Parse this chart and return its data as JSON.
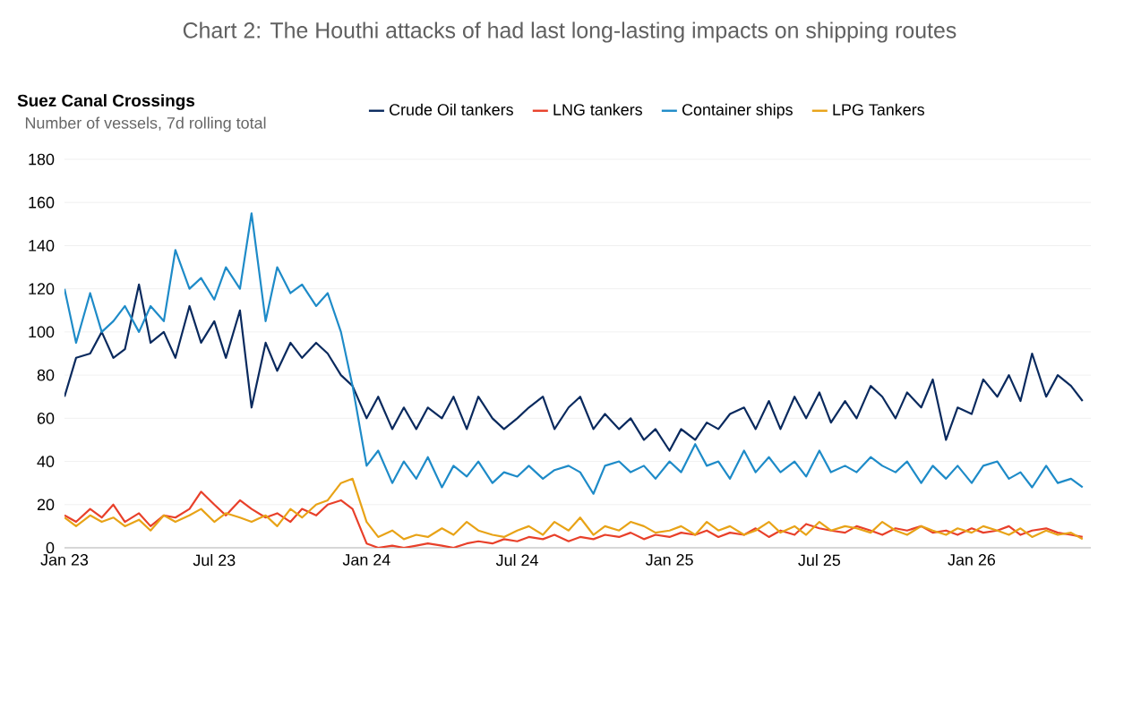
{
  "chart_data": {
    "type": "line",
    "title": "Chart 2: The Houthi attacks of had last long-lasting impacts on shipping routes",
    "subtitle": "Suez Canal Crossings",
    "ylabel": "Number of vessels, 7d rolling total",
    "x": [
      "2023-01-01",
      "2023-01-15",
      "2023-02-01",
      "2023-02-15",
      "2023-03-01",
      "2023-03-15",
      "2023-04-01",
      "2023-04-15",
      "2023-05-01",
      "2023-05-15",
      "2023-06-01",
      "2023-06-15",
      "2023-07-01",
      "2023-07-15",
      "2023-08-01",
      "2023-08-15",
      "2023-09-01",
      "2023-09-15",
      "2023-10-01",
      "2023-10-15",
      "2023-11-01",
      "2023-11-15",
      "2023-12-01",
      "2023-12-15",
      "2024-01-01",
      "2024-01-15",
      "2024-02-01",
      "2024-02-15",
      "2024-03-01",
      "2024-03-15",
      "2024-04-01",
      "2024-04-15",
      "2024-05-01",
      "2024-05-15",
      "2024-06-01",
      "2024-06-15",
      "2024-07-01",
      "2024-07-15",
      "2024-08-01",
      "2024-08-15",
      "2024-09-01",
      "2024-09-15",
      "2024-10-01",
      "2024-10-15",
      "2024-11-01",
      "2024-11-15",
      "2024-12-01",
      "2024-12-15",
      "2025-01-01",
      "2025-01-15",
      "2025-02-01",
      "2025-02-15",
      "2025-03-01",
      "2025-03-15",
      "2025-04-01",
      "2025-04-15",
      "2025-05-01",
      "2025-05-15",
      "2025-06-01",
      "2025-06-15",
      "2025-07-01",
      "2025-07-15",
      "2025-08-01",
      "2025-08-15",
      "2025-09-01",
      "2025-09-15",
      "2025-10-01",
      "2025-10-15",
      "2025-11-01",
      "2025-11-15",
      "2025-12-01",
      "2025-12-15",
      "2026-01-01",
      "2026-01-15",
      "2026-02-01",
      "2026-02-15",
      "2026-03-01",
      "2026-03-15",
      "2026-04-01",
      "2026-04-15",
      "2026-05-01",
      "2026-05-15"
    ],
    "series": [
      {
        "name": "Crude Oil tankers",
        "color": "#0a2a5e",
        "values": [
          70,
          88,
          90,
          100,
          88,
          92,
          122,
          95,
          100,
          88,
          112,
          95,
          105,
          88,
          110,
          65,
          95,
          82,
          95,
          88,
          95,
          90,
          80,
          75,
          60,
          70,
          55,
          65,
          55,
          65,
          60,
          70,
          55,
          70,
          60,
          55,
          60,
          65,
          70,
          55,
          65,
          70,
          55,
          62,
          55,
          60,
          50,
          55,
          45,
          55,
          50,
          58,
          55,
          62,
          65,
          55,
          68,
          55,
          70,
          60,
          72,
          58,
          68,
          60,
          75,
          70,
          60,
          72,
          65,
          78,
          50,
          65,
          62,
          78,
          70,
          80,
          68,
          90,
          70,
          80,
          75,
          68
        ]
      },
      {
        "name": "LNG tankers",
        "color": "#e8402a",
        "values": [
          15,
          12,
          18,
          14,
          20,
          12,
          16,
          10,
          15,
          14,
          18,
          26,
          20,
          15,
          22,
          18,
          14,
          16,
          12,
          18,
          15,
          20,
          22,
          18,
          2,
          0,
          1,
          0,
          1,
          2,
          1,
          0,
          2,
          3,
          2,
          4,
          3,
          5,
          4,
          6,
          3,
          5,
          4,
          6,
          5,
          7,
          4,
          6,
          5,
          7,
          6,
          8,
          5,
          7,
          6,
          9,
          5,
          8,
          6,
          11,
          9,
          8,
          7,
          10,
          8,
          6,
          9,
          8,
          10,
          7,
          8,
          6,
          9,
          7,
          8,
          10,
          6,
          8,
          9,
          7,
          6,
          5
        ]
      },
      {
        "name": "Container ships",
        "color": "#1e8bc8",
        "values": [
          120,
          95,
          118,
          100,
          105,
          112,
          100,
          112,
          105,
          138,
          120,
          125,
          115,
          130,
          120,
          155,
          105,
          130,
          118,
          122,
          112,
          118,
          100,
          75,
          38,
          45,
          30,
          40,
          32,
          42,
          28,
          38,
          33,
          40,
          30,
          35,
          33,
          38,
          32,
          36,
          38,
          35,
          25,
          38,
          40,
          35,
          38,
          32,
          40,
          35,
          48,
          38,
          40,
          32,
          45,
          35,
          42,
          35,
          40,
          33,
          45,
          35,
          38,
          35,
          42,
          38,
          35,
          40,
          30,
          38,
          32,
          38,
          30,
          38,
          40,
          32,
          35,
          28,
          38,
          30,
          32,
          28
        ]
      },
      {
        "name": "LPG Tankers",
        "color": "#e8a317",
        "values": [
          14,
          10,
          15,
          12,
          14,
          10,
          13,
          8,
          15,
          12,
          15,
          18,
          12,
          16,
          14,
          12,
          15,
          10,
          18,
          14,
          20,
          22,
          30,
          32,
          12,
          5,
          8,
          4,
          6,
          5,
          9,
          6,
          12,
          8,
          6,
          5,
          8,
          10,
          6,
          12,
          8,
          14,
          6,
          10,
          8,
          12,
          10,
          7,
          8,
          10,
          6,
          12,
          8,
          10,
          6,
          8,
          12,
          7,
          10,
          6,
          12,
          8,
          10,
          9,
          7,
          12,
          8,
          6,
          10,
          8,
          6,
          9,
          7,
          10,
          8,
          6,
          9,
          5,
          8,
          6,
          7,
          4
        ]
      }
    ],
    "xlim": [
      "2023-01-01",
      "2026-05-25"
    ],
    "xticks": [
      {
        "value": "2023-01-01",
        "label": "Jan 23"
      },
      {
        "value": "2023-07-01",
        "label": "Jul 23"
      },
      {
        "value": "2024-01-01",
        "label": "Jan 24"
      },
      {
        "value": "2024-07-01",
        "label": "Jul 24"
      },
      {
        "value": "2025-01-01",
        "label": "Jan 25"
      },
      {
        "value": "2025-07-01",
        "label": "Jul 25"
      },
      {
        "value": "2026-01-01",
        "label": "Jan 26"
      }
    ],
    "ylim": [
      0,
      180
    ],
    "yticks": [
      0,
      20,
      40,
      60,
      80,
      100,
      120,
      140,
      160,
      180
    ],
    "grid": "y",
    "legend": "top",
    "marker": "none",
    "line_style": "solid"
  }
}
